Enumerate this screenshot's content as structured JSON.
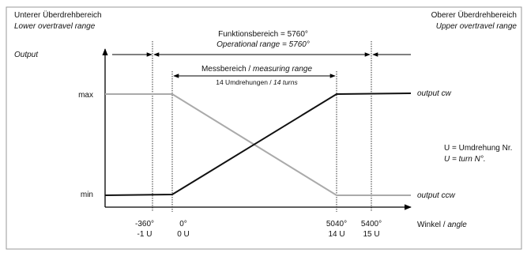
{
  "header": {
    "lower_de": "Unterer Überdrehbereich",
    "lower_en": "Lower overtravel range",
    "function_de": "Funktionsbereich = 5760°",
    "function_en": "Operational range = 5760°",
    "upper_de": "Oberer Überdrehbereich",
    "upper_en": "Upper overtravel range"
  },
  "axes": {
    "y_label": "Output",
    "x_label_de": "Winkel /",
    "x_label_en": "angle",
    "max": "max",
    "min": "min"
  },
  "measuring": {
    "de": "Messbereich /",
    "en": "measuring range",
    "turns_de": "14 Umdrehungen  /",
    "turns_en": "14 turns"
  },
  "outputs": {
    "cw": "output cw",
    "ccw": "output ccw"
  },
  "legend": {
    "de": "U = Umdrehung Nr.",
    "en": "U = turn N°."
  },
  "ticks": [
    {
      "deg": "-360°",
      "turn": "-1 U"
    },
    {
      "deg": "0°",
      "turn": "0 U"
    },
    {
      "deg": "5040°",
      "turn": "14 U"
    },
    {
      "deg": "5400°",
      "turn": "15 U"
    }
  ]
}
